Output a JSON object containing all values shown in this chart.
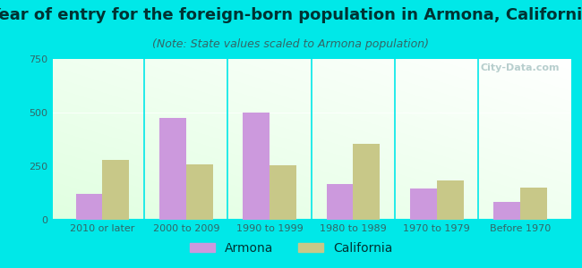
{
  "title": "Year of entry for the foreign-born population in Armona, California",
  "subtitle": "(Note: State values scaled to Armona population)",
  "categories": [
    "2010 or later",
    "2000 to 2009",
    "1990 to 1999",
    "1980 to 1989",
    "1970 to 1979",
    "Before 1970"
  ],
  "armona_values": [
    120,
    475,
    500,
    165,
    145,
    85
  ],
  "california_values": [
    280,
    260,
    255,
    355,
    185,
    150
  ],
  "armona_color": "#cc99dd",
  "california_color": "#c8c888",
  "bg_color": "#00e8e8",
  "ylim": [
    0,
    750
  ],
  "yticks": [
    0,
    250,
    500,
    750
  ],
  "bar_width": 0.32,
  "title_fontsize": 13,
  "subtitle_fontsize": 9,
  "tick_fontsize": 8,
  "legend_fontsize": 10,
  "title_color": "#003333",
  "subtitle_color": "#336666",
  "tick_color": "#336666",
  "watermark": "City-Data.com"
}
